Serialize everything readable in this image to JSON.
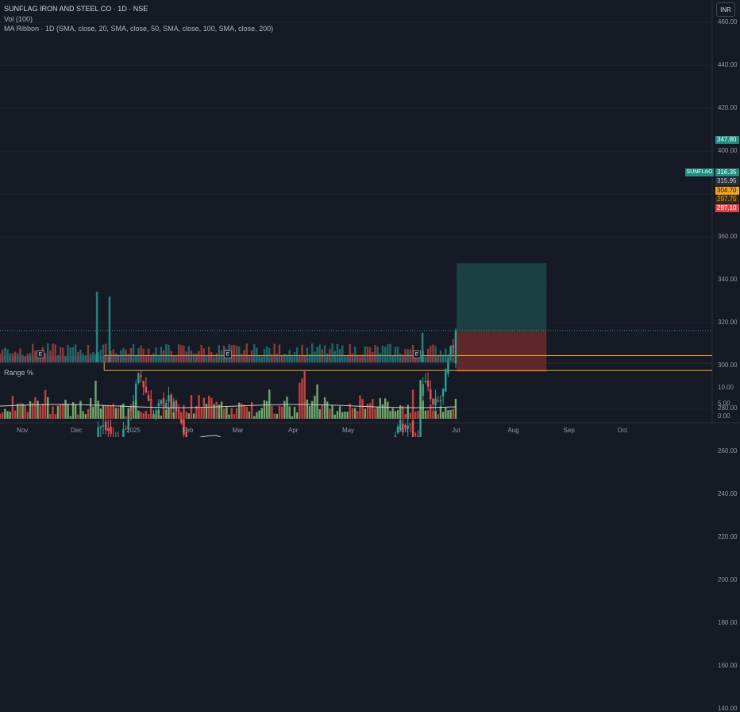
{
  "legend": {
    "title": "SUNFLAG IRON AND STEEL CO · 1D · NSE",
    "volume": "Vol (100)",
    "ma_ribbon": "MA Ribbon · 1D (SMA, close, 20, SMA, close, 50, SMA, close, 100, SMA, close, 200)",
    "range_indicator": "Range %"
  },
  "currency": "INR",
  "price_axis": [
    "460.00",
    "440.00",
    "420.00",
    "400.00",
    "380.00",
    "360.00",
    "340.00",
    "320.00",
    "300.00",
    "280.00",
    "260.00",
    "240.00",
    "220.00",
    "200.00",
    "180.00",
    "160.00",
    "140.00"
  ],
  "range_axis": [
    "10.00",
    "5.00",
    "0.00"
  ],
  "time_axis": [
    "Nov",
    "Dec",
    "2025",
    "Feb",
    "Mar",
    "Apr",
    "May",
    "Jun",
    "Jul",
    "Aug",
    "Sep",
    "Oct"
  ],
  "earnings_marker": "E",
  "tags": {
    "symbol": "SUNFLAG",
    "last": "316.35",
    "target": "347.80",
    "p1": "315.95",
    "p2": "304.70",
    "p3": "297.75",
    "stop": "297.10"
  },
  "colors": {
    "background": "#161a25",
    "up": "#26a69a",
    "down": "#ef5350",
    "orange": "#f7a21b",
    "target_zone": "#1e4a4a",
    "stop_zone": "#6b2a2a"
  },
  "chart_data": {
    "type": "candlestick",
    "symbol": "SUNFLAG",
    "exchange": "NSE",
    "interval": "1D",
    "price_range": [
      140,
      460
    ],
    "anchors": [
      [
        "2024-10-25",
        213
      ],
      [
        "2024-11-06",
        214
      ],
      [
        "2024-11-15",
        202
      ],
      [
        "2024-11-22",
        206
      ],
      [
        "2024-12-02",
        222
      ],
      [
        "2024-12-09",
        227
      ],
      [
        "2024-12-13",
        272
      ],
      [
        "2024-12-19",
        270
      ],
      [
        "2024-12-25",
        262
      ],
      [
        "2024-12-31",
        278
      ],
      [
        "2025-01-06",
        296
      ],
      [
        "2025-01-14",
        276
      ],
      [
        "2025-01-20",
        285
      ],
      [
        "2025-01-27",
        277
      ],
      [
        "2025-02-04",
        257
      ],
      [
        "2025-02-10",
        232
      ],
      [
        "2025-02-21",
        230
      ],
      [
        "2025-03-03",
        222
      ],
      [
        "2025-03-12",
        202
      ],
      [
        "2025-03-20",
        235
      ],
      [
        "2025-03-27",
        228
      ],
      [
        "2025-04-03",
        260
      ],
      [
        "2025-04-07",
        200
      ],
      [
        "2025-04-15",
        240
      ],
      [
        "2025-04-22",
        250
      ],
      [
        "2025-04-30",
        255
      ],
      [
        "2025-05-08",
        244
      ],
      [
        "2025-05-14",
        225
      ],
      [
        "2025-05-19",
        222
      ],
      [
        "2025-05-23",
        248
      ],
      [
        "2025-05-28",
        270
      ],
      [
        "2025-06-04",
        272
      ],
      [
        "2025-06-09",
        265
      ],
      [
        "2025-06-12",
        295
      ],
      [
        "2025-06-18",
        280
      ],
      [
        "2025-06-23",
        285
      ],
      [
        "2025-06-26",
        300
      ],
      [
        "2025-07-01",
        316.35
      ]
    ],
    "horizontal_levels": [
      304.7,
      297.75
    ],
    "long_position": {
      "entry": 315.95,
      "target": 347.8,
      "stop": 297.1
    },
    "last_price": 316.35,
    "earnings_dates": [
      "2024-11-12",
      "2025-02-11",
      "2025-05-29"
    ],
    "volume_spikes": [
      [
        "2024-12-13",
        7.4
      ],
      [
        "2024-12-20",
        6.9
      ],
      [
        "2025-06-12",
        3.1
      ]
    ],
    "range_percent_axis": [
      0,
      10
    ]
  }
}
